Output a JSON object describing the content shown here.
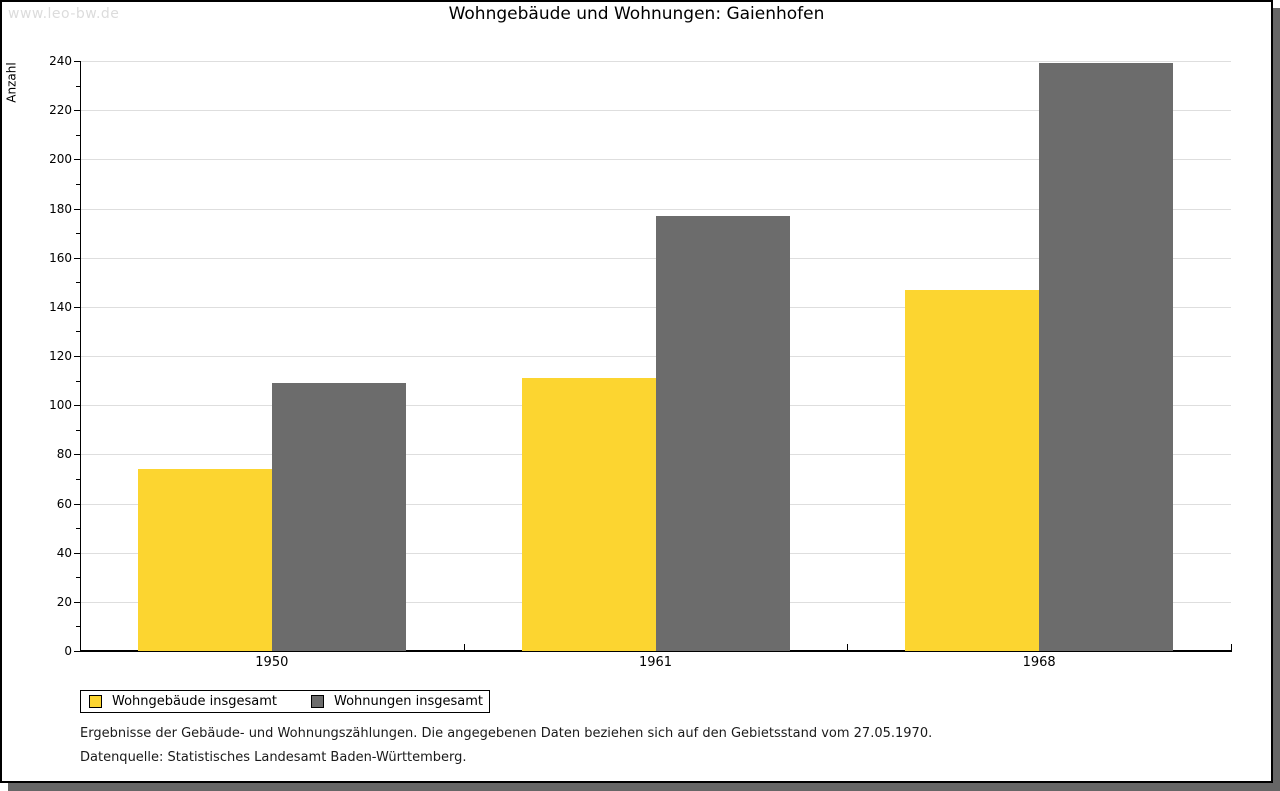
{
  "watermark": "www.leo-bw.de",
  "title": "Wohngebäude und Wohnungen: Gaienhofen",
  "footnotes": {
    "line1": "Ergebnisse der Gebäude- und Wohnungszählungen. Die angegebenen Daten beziehen sich auf den Gebietsstand vom 27.05.1970.",
    "line2": "Datenquelle: Statistisches Landesamt Baden-Württemberg."
  },
  "chart_data": {
    "type": "bar",
    "title": "Wohngebäude und Wohnungen: Gaienhofen",
    "xlabel": "",
    "ylabel": "Anzahl",
    "categories": [
      "1950",
      "1961",
      "1968"
    ],
    "series": [
      {
        "name": "Wohngebäude insgesamt",
        "color": "#FCD530",
        "values": [
          74,
          111,
          147
        ]
      },
      {
        "name": "Wohnungen insgesamt",
        "color": "#6C6C6C",
        "values": [
          109,
          177,
          239
        ]
      }
    ],
    "ylim": [
      0,
      240
    ],
    "ytick_step": 20,
    "minor_tick_step": 10,
    "grid": "horizontal",
    "gridline_color": "#DEDEDE",
    "axis_color": "#000000",
    "legend_position": "bottom-left"
  }
}
